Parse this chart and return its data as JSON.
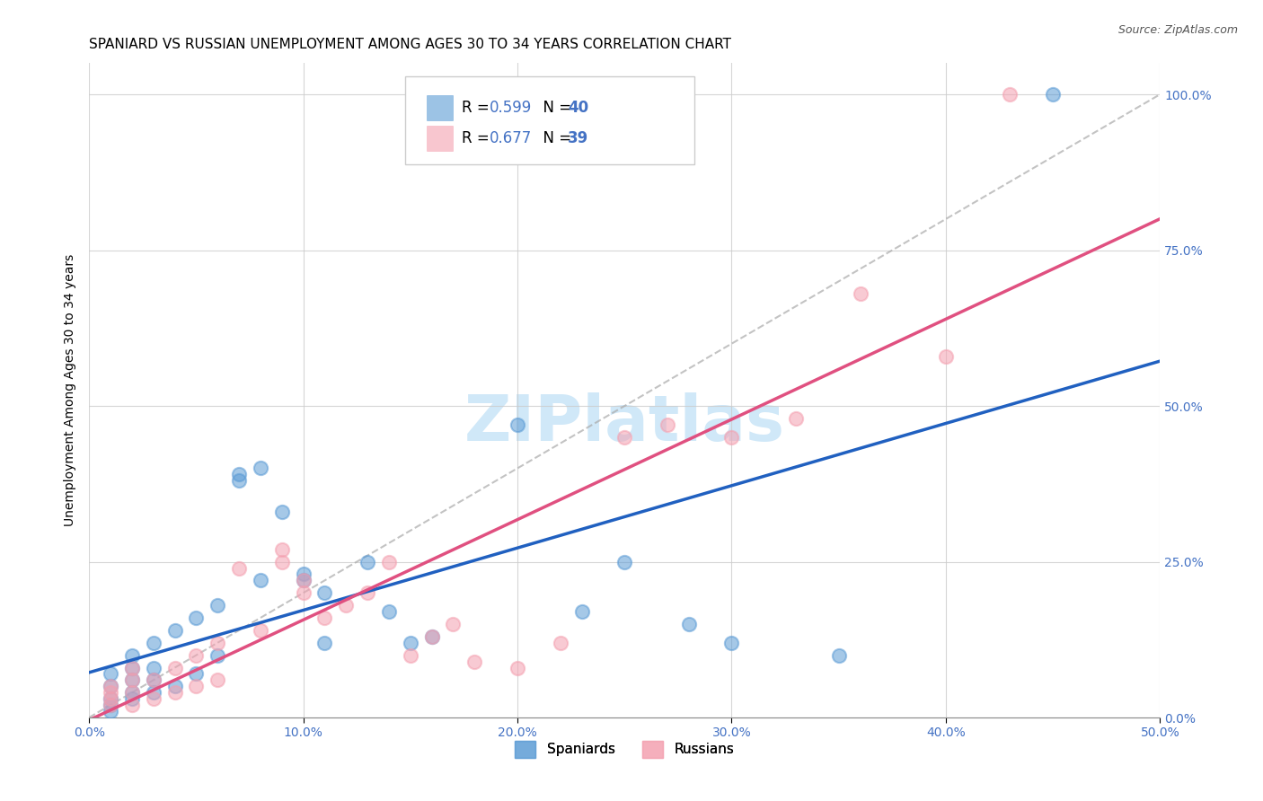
{
  "title": "SPANIARD VS RUSSIAN UNEMPLOYMENT AMONG AGES 30 TO 34 YEARS CORRELATION CHART",
  "source": "Source: ZipAtlas.com",
  "xlabel_ticks": [
    "0.0%",
    "50.0%"
  ],
  "ylabel_label": "Unemployment Among Ages 30 to 34 years",
  "ylabel_ticks": [
    "0.0%",
    "25.0%",
    "50.0%",
    "75.0%",
    "100.0%"
  ],
  "xlim": [
    0.0,
    0.5
  ],
  "ylim": [
    0.0,
    1.05
  ],
  "legend_entries": [
    {
      "label": "R = 0.599   N = 40",
      "color": "#7ab3e0"
    },
    {
      "label": "R = 0.677   N = 39",
      "color": "#f4a0b0"
    }
  ],
  "watermark": "ZIPlatlas",
  "watermark_color": "#d0e8f8",
  "spaniards_x": [
    0.01,
    0.01,
    0.01,
    0.01,
    0.01,
    0.02,
    0.02,
    0.02,
    0.02,
    0.02,
    0.03,
    0.03,
    0.03,
    0.03,
    0.04,
    0.04,
    0.05,
    0.05,
    0.06,
    0.06,
    0.07,
    0.07,
    0.08,
    0.08,
    0.09,
    0.1,
    0.1,
    0.11,
    0.11,
    0.13,
    0.14,
    0.15,
    0.16,
    0.2,
    0.23,
    0.25,
    0.28,
    0.3,
    0.35,
    0.45
  ],
  "spaniards_y": [
    0.01,
    0.02,
    0.03,
    0.05,
    0.07,
    0.03,
    0.04,
    0.06,
    0.08,
    0.1,
    0.04,
    0.06,
    0.08,
    0.12,
    0.05,
    0.14,
    0.07,
    0.16,
    0.1,
    0.18,
    0.38,
    0.39,
    0.22,
    0.4,
    0.33,
    0.22,
    0.23,
    0.2,
    0.12,
    0.25,
    0.17,
    0.12,
    0.13,
    0.47,
    0.17,
    0.25,
    0.15,
    0.12,
    0.1,
    1.0
  ],
  "russians_x": [
    0.01,
    0.01,
    0.01,
    0.01,
    0.02,
    0.02,
    0.02,
    0.02,
    0.03,
    0.03,
    0.04,
    0.04,
    0.05,
    0.05,
    0.06,
    0.06,
    0.07,
    0.08,
    0.09,
    0.09,
    0.1,
    0.1,
    0.11,
    0.12,
    0.13,
    0.14,
    0.15,
    0.16,
    0.17,
    0.18,
    0.2,
    0.22,
    0.25,
    0.27,
    0.3,
    0.33,
    0.36,
    0.4,
    0.43
  ],
  "russians_y": [
    0.02,
    0.03,
    0.04,
    0.05,
    0.02,
    0.04,
    0.06,
    0.08,
    0.03,
    0.06,
    0.04,
    0.08,
    0.05,
    0.1,
    0.06,
    0.12,
    0.24,
    0.14,
    0.25,
    0.27,
    0.2,
    0.22,
    0.16,
    0.18,
    0.2,
    0.25,
    0.1,
    0.13,
    0.15,
    0.09,
    0.08,
    0.12,
    0.45,
    0.47,
    0.45,
    0.48,
    0.68,
    0.58,
    1.0
  ],
  "blue_color": "#5b9bd5",
  "pink_color": "#f4a0b0",
  "blue_line_color": "#2060c0",
  "pink_line_color": "#e05080",
  "title_fontsize": 11,
  "axis_label_fontsize": 10,
  "tick_fontsize": 10
}
